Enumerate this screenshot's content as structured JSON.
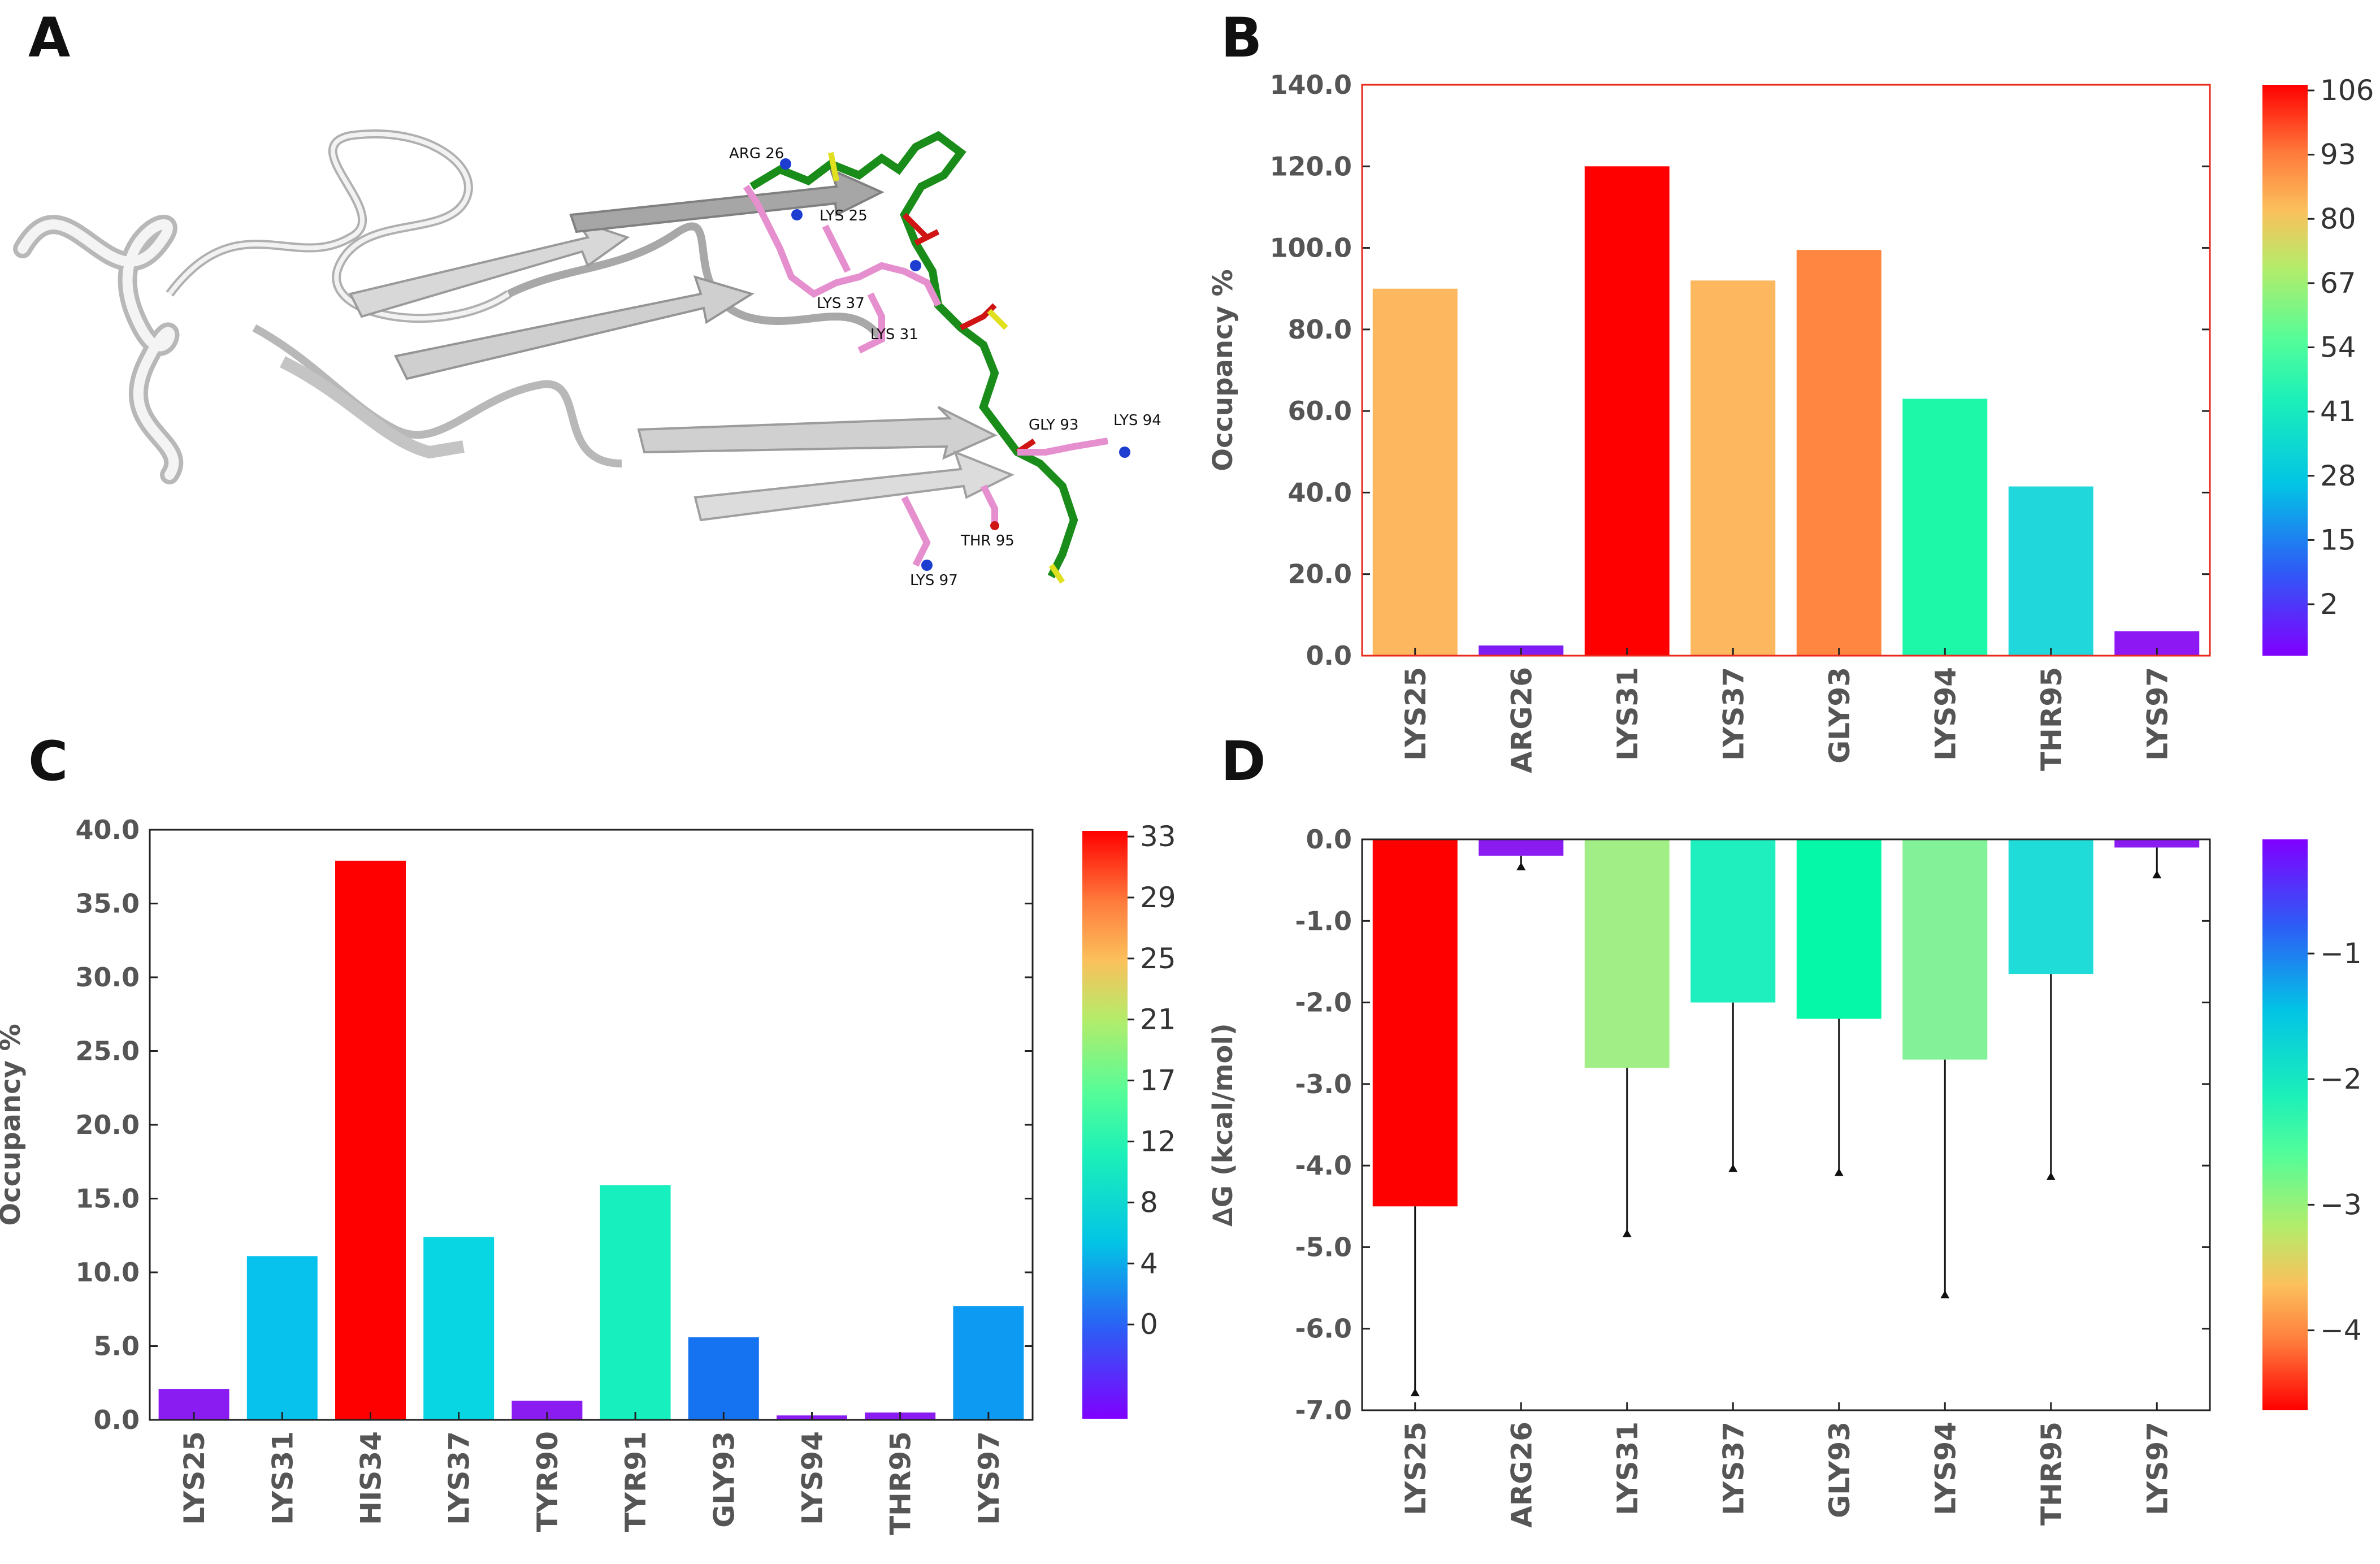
{
  "panels": {
    "A": {
      "label": "A",
      "residue_labels": [
        "ARG 26",
        "LYS 25",
        "LYS 37",
        "LYS 31",
        "GLY 93",
        "LYS 94",
        "THR 95",
        "LYS 97"
      ]
    },
    "B": {
      "label": "B"
    },
    "C": {
      "label": "C"
    },
    "D": {
      "label": "D"
    }
  },
  "chart_data": [
    {
      "id": "B",
      "type": "bar",
      "categories": [
        "LYS25",
        "ARG26",
        "LYS31",
        "LYS37",
        "GLY93",
        "LYS94",
        "THR95",
        "LYS97"
      ],
      "values": [
        90.0,
        2.5,
        120.0,
        92.0,
        99.5,
        63.0,
        41.5,
        6.0
      ],
      "colors": [
        "#fcb75f",
        "#7f1cf4",
        "#ff0000",
        "#fcb75f",
        "#fe8641",
        "#1cf7a8",
        "#20d7dc",
        "#8d18f4"
      ],
      "ylabel": "Occupancy %",
      "ylim": [
        0,
        140
      ],
      "yticks": [
        "0.0",
        "20.0",
        "40.0",
        "60.0",
        "80.0",
        "100.0",
        "120.0",
        "140.0"
      ],
      "frame_color": "#e8291c",
      "colorbar": {
        "ticks": [
          "106",
          "93",
          "80",
          "67",
          "54",
          "41",
          "28",
          "15",
          "2"
        ]
      }
    },
    {
      "id": "C",
      "type": "bar",
      "categories": [
        "LYS25",
        "LYS31",
        "HIS34",
        "LYS37",
        "TYR90",
        "TYR91",
        "GLY93",
        "LYS94",
        "THR95",
        "LYS97"
      ],
      "values": [
        2.1,
        11.1,
        37.9,
        12.4,
        1.3,
        15.9,
        5.6,
        0.3,
        0.5,
        7.7
      ],
      "colors": [
        "#8a1cf2",
        "#07c2ec",
        "#ff0000",
        "#09d6e3",
        "#8a1cf2",
        "#17f0be",
        "#1572f1",
        "#8a1cf2",
        "#8a1cf2",
        "#0c9af2"
      ],
      "ylabel": "Occupancy %",
      "ylim": [
        0,
        40
      ],
      "yticks": [
        "0.0",
        "5.0",
        "10.0",
        "15.0",
        "20.0",
        "25.0",
        "30.0",
        "35.0",
        "40.0"
      ],
      "colorbar": {
        "ticks": [
          "33",
          "29",
          "25",
          "21",
          "17",
          "12",
          "8",
          "4",
          "0"
        ]
      }
    },
    {
      "id": "D",
      "type": "bar",
      "categories": [
        "LYS25",
        "ARG26",
        "LYS31",
        "LYS37",
        "GLY93",
        "LYS94",
        "THR95",
        "LYS97"
      ],
      "values": [
        -4.5,
        -0.2,
        -2.8,
        -2.0,
        -2.2,
        -2.7,
        -1.65,
        -0.1
      ],
      "error": [
        2.3,
        0.15,
        2.05,
        2.05,
        1.9,
        2.9,
        2.5,
        0.35
      ],
      "colors": [
        "#ff0000",
        "#8a1cf2",
        "#a1ee86",
        "#1fefbf",
        "#04f8a7",
        "#83f198",
        "#20dcd9",
        "#8a1cf2"
      ],
      "ylabel": "∆G (kcal/mol)",
      "ylim": [
        -7,
        0
      ],
      "yticks": [
        "0.0",
        "-1.0",
        "-2.0",
        "-3.0",
        "-4.0",
        "-5.0",
        "-6.0",
        "-7.0"
      ],
      "colorbar": {
        "ticks": [
          "−1",
          "−2",
          "−3",
          "−4"
        ]
      }
    }
  ]
}
